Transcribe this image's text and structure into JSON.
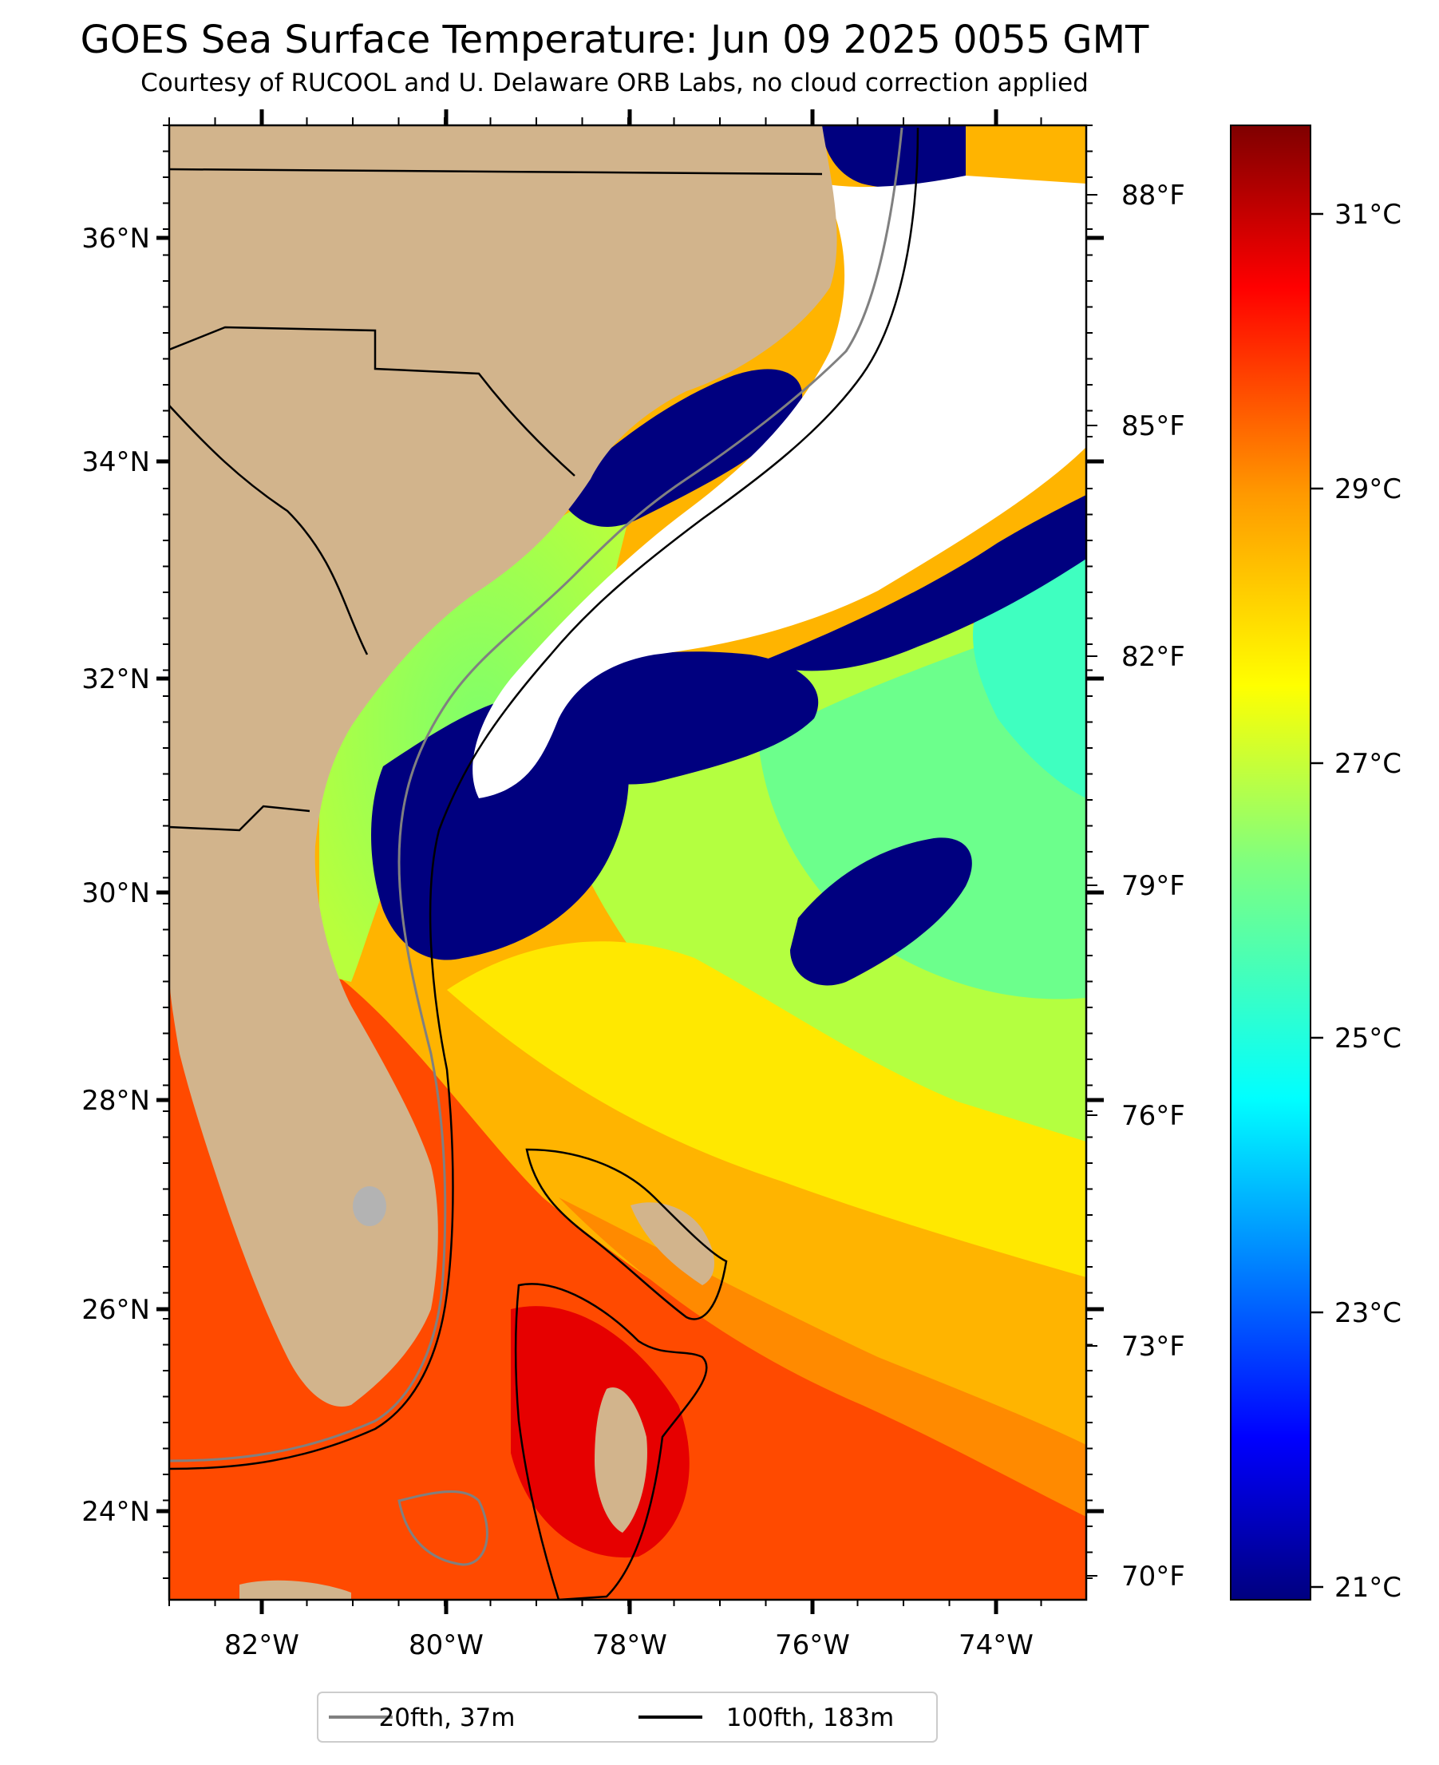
{
  "title": "GOES Sea Surface Temperature: Jun 09 2025 0055 GMT",
  "subtitle": "Courtesy of RUCOOL and U. Delaware ORB Labs, no cloud correction applied",
  "map": {
    "lat_labels": [
      "36°N",
      "34°N",
      "32°N",
      "30°N",
      "28°N",
      "26°N",
      "24°N"
    ],
    "lon_labels": [
      "82°W",
      "80°W",
      "78°W",
      "76°W",
      "74°W"
    ],
    "fahrenheit_labels": [
      "88°F",
      "85°F",
      "82°F",
      "79°F",
      "76°F",
      "73°F",
      "70°F"
    ]
  },
  "colorbar": {
    "labels": [
      "31°C",
      "29°C",
      "27°C",
      "25°C",
      "23°C",
      "21°C"
    ],
    "colormap": "jet",
    "colors": [
      "#00007f",
      "#0000ff",
      "#007fff",
      "#00ffff",
      "#7fff7f",
      "#ffff00",
      "#ff7f00",
      "#ff0000",
      "#7f0000"
    ]
  },
  "legend": {
    "items": [
      {
        "label": "20fth, 37m",
        "color": "#808080"
      },
      {
        "label": "100fth, 183m",
        "color": "#000000"
      }
    ]
  },
  "colors": {
    "land": "#d2b48c",
    "cloud_no_data": "#ffffff",
    "lakes": "#b3b3b3"
  }
}
